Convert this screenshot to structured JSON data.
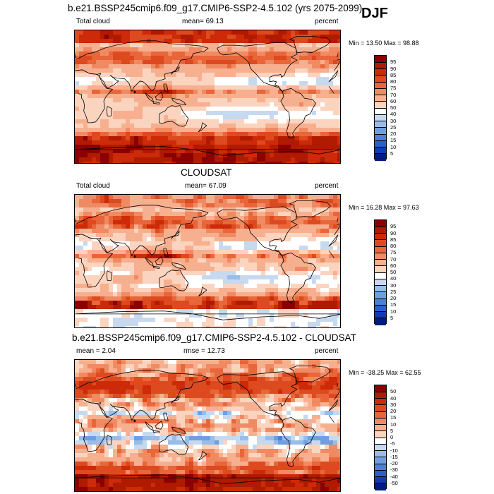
{
  "header": {
    "season": "DJF"
  },
  "chart_data": [
    {
      "type": "heatmap",
      "title": "b.e21.BSSP245cmip6.f09_g17.CMIP6-SSP2-4.5.102 (yrs 2075-2099)",
      "left_label": "Total cloud",
      "center_label": "mean=  69.13",
      "right_label": "percent",
      "minmax_label": "Min = 13.50 Max = 98.88",
      "stats": {
        "mean": 69.13,
        "min": 13.5,
        "max": 98.88
      },
      "colorbar": {
        "levels": [
          "95",
          "90",
          "85",
          "80",
          "75",
          "70",
          "60",
          "50",
          "40",
          "30",
          "25",
          "20",
          "15",
          "10",
          "5"
        ],
        "colors": [
          "#8b0000",
          "#b01a00",
          "#cc2a08",
          "#dd4a1f",
          "#e8663a",
          "#f08a62",
          "#f7b08f",
          "#fbd4bf",
          "#ffffff",
          "#c6d9ef",
          "#98bde8",
          "#6f9fe0",
          "#4a80d9",
          "#2a5fcf",
          "#1338b8",
          "#001c80"
        ]
      },
      "field": "model"
    },
    {
      "type": "heatmap",
      "title": "CLOUDSAT",
      "left_label": "Total cloud",
      "center_label": "mean=  67.09",
      "right_label": "percent",
      "minmax_label": "Min = 16.28 Max = 97.63",
      "stats": {
        "mean": 67.09,
        "min": 16.28,
        "max": 97.63
      },
      "colorbar": {
        "levels": [
          "95",
          "90",
          "85",
          "80",
          "75",
          "70",
          "60",
          "50",
          "40",
          "30",
          "25",
          "20",
          "15",
          "10",
          "5"
        ],
        "colors": [
          "#8b0000",
          "#b01a00",
          "#cc2a08",
          "#dd4a1f",
          "#e8663a",
          "#f08a62",
          "#f7b08f",
          "#fbd4bf",
          "#ffffff",
          "#c6d9ef",
          "#98bde8",
          "#6f9fe0",
          "#4a80d9",
          "#2a5fcf",
          "#1338b8",
          "#001c80"
        ]
      },
      "field": "obs"
    },
    {
      "type": "heatmap",
      "title": "b.e21.BSSP245cmip6.f09_g17.CMIP6-SSP2-4.5.102 - CLOUDSAT",
      "left_label": "mean =   2.04",
      "center_label": "rmse =  12.73",
      "right_label": "percent",
      "minmax_label": "Min = -38.25 Max = 62.55",
      "stats": {
        "mean": 2.04,
        "rmse": 12.73,
        "min": -38.25,
        "max": 62.55
      },
      "colorbar": {
        "levels": [
          "50",
          "40",
          "30",
          "20",
          "15",
          "10",
          "5",
          "0",
          "-5",
          "-10",
          "-15",
          "-20",
          "-30",
          "-40",
          "-50"
        ],
        "colors": [
          "#8b0000",
          "#b01a00",
          "#cc2a08",
          "#dd4a1f",
          "#e8663a",
          "#f08a62",
          "#f7b08f",
          "#fbd4bf",
          "#ffffff",
          "#c6d9ef",
          "#98bde8",
          "#6f9fe0",
          "#4a80d9",
          "#2a5fcf",
          "#1338b8",
          "#001c80"
        ]
      },
      "field": "diff"
    }
  ]
}
